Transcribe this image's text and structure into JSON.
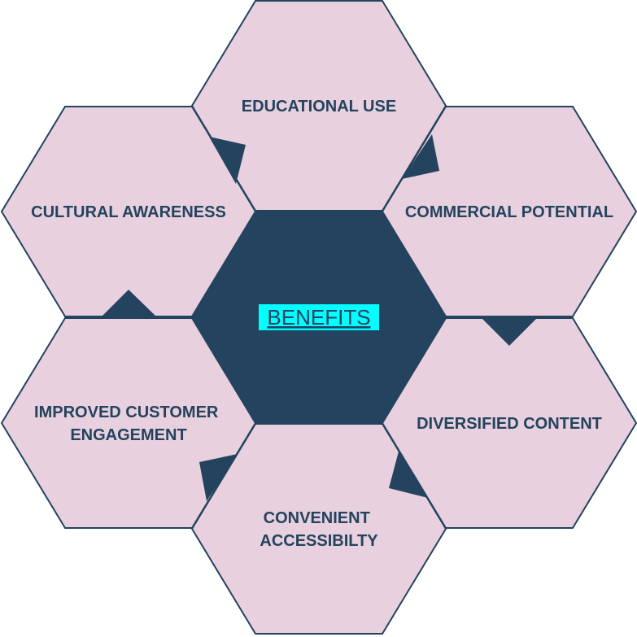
{
  "diagram": {
    "center": {
      "label": "BENEFITS",
      "highlight_color": "#00ffff"
    },
    "items": [
      {
        "lines": [
          "EDUCATIONAL USE"
        ]
      },
      {
        "lines": [
          "COMMERCIAL POTENTIAL"
        ]
      },
      {
        "lines": [
          "DIVERSIFIED CONTENT"
        ]
      },
      {
        "lines": [
          "CONVENIENT",
          "ACCESSIBILTY"
        ]
      },
      {
        "lines": [
          "IMPROVED CUSTOMER",
          "ENGAGEMENT"
        ]
      },
      {
        "lines": [
          "CULTURAL AWARENESS"
        ]
      }
    ],
    "colors": {
      "hex_fill": "#e8d0de",
      "dark": "#23435e"
    }
  }
}
